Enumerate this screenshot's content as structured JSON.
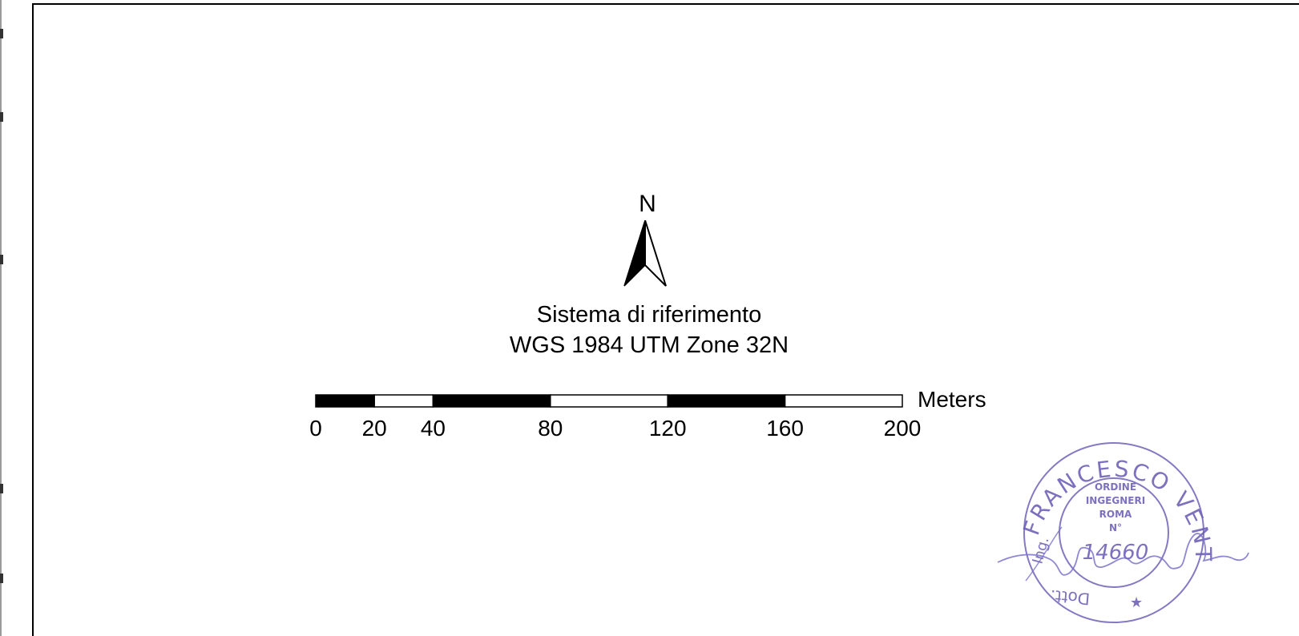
{
  "north_arrow": {
    "letter": "N"
  },
  "reference_system": {
    "line1": "Sistema di riferimento",
    "line2": "WGS 1984 UTM Zone 32N"
  },
  "scale_bar": {
    "unit": "Meters",
    "tick_labels": [
      "0",
      "20",
      "40",
      "80",
      "120",
      "160",
      "200"
    ],
    "segments": [
      {
        "from": 0,
        "to": 20,
        "fill": "black"
      },
      {
        "from": 20,
        "to": 40,
        "fill": "white"
      },
      {
        "from": 40,
        "to": 80,
        "fill": "black"
      },
      {
        "from": 80,
        "to": 120,
        "fill": "white"
      },
      {
        "from": 120,
        "to": 160,
        "fill": "black"
      },
      {
        "from": 160,
        "to": 200,
        "fill": "white"
      }
    ]
  },
  "stamp": {
    "outer_text": "Dott. Ing. FRANCESCO VENTURA",
    "inner_text": [
      "ORDINE",
      "INGEGNERI",
      "ROMA",
      "N°"
    ],
    "number": "14660",
    "color": "#6f62b8"
  }
}
